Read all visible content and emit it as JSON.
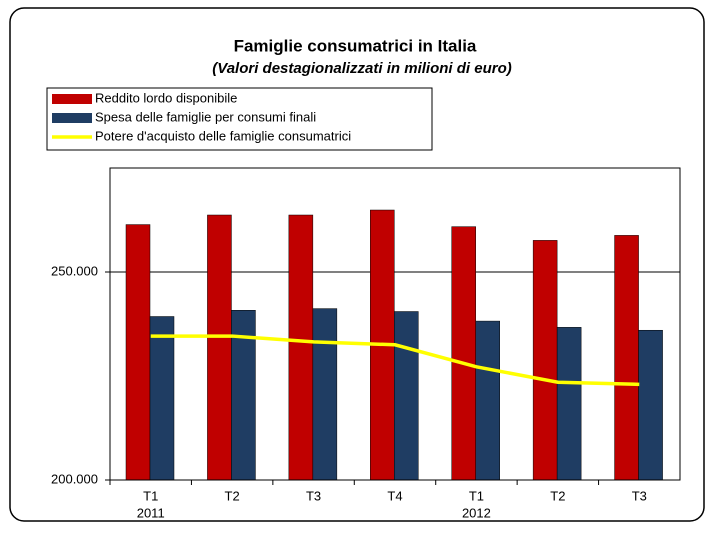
{
  "chart_data": {
    "type": "bar-line",
    "title": "Famiglie consumatrici in Italia",
    "subtitle": "(Valori destagionalizzati in milioni di euro)",
    "categories": [
      "T1",
      "T2",
      "T3",
      "T4",
      "T1",
      "T2",
      "T3"
    ],
    "year_labels": [
      "2011",
      null,
      null,
      null,
      "2012",
      null,
      null
    ],
    "series": [
      {
        "name": "Reddito lordo disponibile",
        "type": "bar",
        "color": "#c00000",
        "values": [
          261400,
          263700,
          263700,
          264900,
          260900,
          257600,
          258800
        ]
      },
      {
        "name": "Spesa delle famiglie per consumi finali",
        "type": "bar",
        "color": "#1f3d63",
        "values": [
          239300,
          240800,
          241200,
          240500,
          238200,
          236700,
          236000
        ]
      },
      {
        "name": "Potere d'acquisto delle famiglie consumatrici",
        "type": "line",
        "color": "#ffff00",
        "values": [
          234600,
          234600,
          233200,
          232500,
          227200,
          223500,
          223000
        ]
      }
    ],
    "ylim": [
      200000,
      275000
    ],
    "yticks": [
      {
        "value": 200000,
        "label": "200.000"
      },
      {
        "value": 250000,
        "label": "250.000"
      }
    ],
    "grid": true
  }
}
